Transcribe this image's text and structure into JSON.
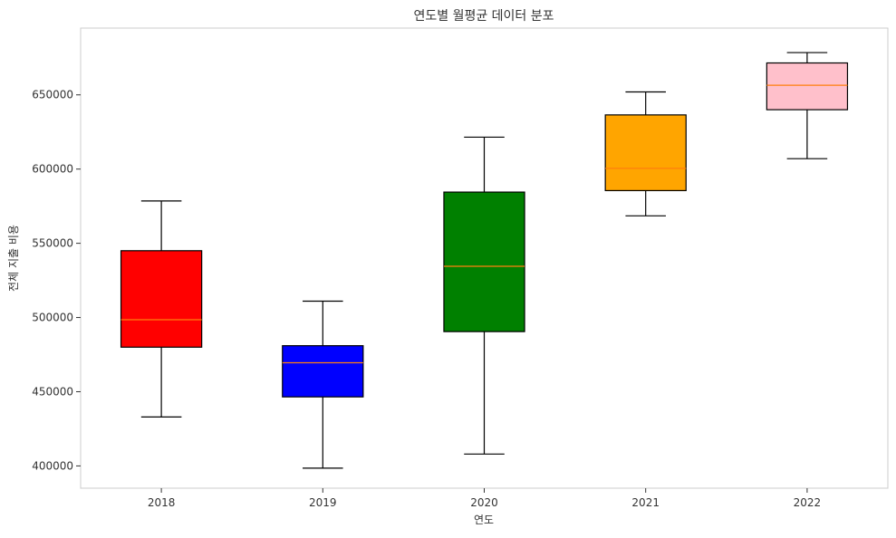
{
  "chart_data": {
    "type": "boxplot",
    "title": "연도별 월평균 데이터 분포",
    "xlabel": "연도",
    "ylabel": "전체 지출 비용",
    "categories": [
      "2018",
      "2019",
      "2020",
      "2021",
      "2022"
    ],
    "boxes": [
      {
        "category": "2018",
        "whisker_low": 433000,
        "q1": 480000,
        "median": 498500,
        "q3": 545000,
        "whisker_high": 578500,
        "color": "#ff0000"
      },
      {
        "category": "2019",
        "whisker_low": 398500,
        "q1": 446500,
        "median": 469500,
        "q3": 481000,
        "whisker_high": 511000,
        "color": "#0000ff"
      },
      {
        "category": "2020",
        "whisker_low": 408000,
        "q1": 490500,
        "median": 534500,
        "q3": 584500,
        "whisker_high": 621500,
        "color": "#008000"
      },
      {
        "category": "2021",
        "whisker_low": 568500,
        "q1": 585500,
        "median": 600500,
        "q3": 636500,
        "whisker_high": 652000,
        "color": "#ffa500"
      },
      {
        "category": "2022",
        "whisker_low": 607000,
        "q1": 640000,
        "median": 656500,
        "q3": 671500,
        "whisker_high": 678500,
        "color": "#ffc0cb"
      }
    ],
    "median_color": "#ff7f0e",
    "yticks": [
      400000,
      450000,
      500000,
      550000,
      600000,
      650000
    ],
    "ylim": [
      385000,
      695000
    ],
    "grid": false,
    "legend": "none"
  }
}
